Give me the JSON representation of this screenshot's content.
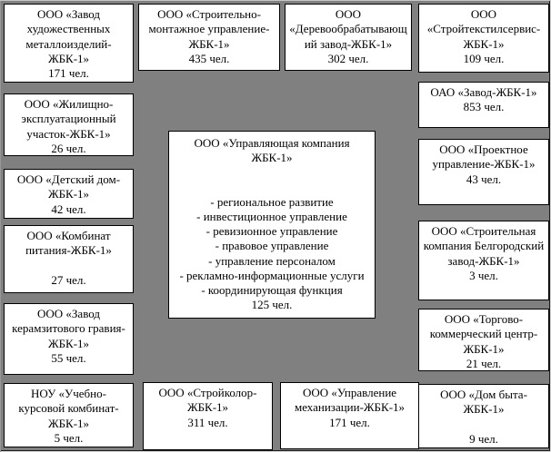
{
  "diagram": {
    "background_color": "#808080",
    "box_background_color": "#ffffff",
    "box_border_color": "#000000",
    "center": {
      "title": "ООО «Управляющая компания ЖБК-1»",
      "functions": "- региональное развитие\n- инвестиционное управление\n- ревизионное управление\n- правовое управление\n- управление персоналом\n- рекламно-информационные услуги\n- координирующая функция",
      "headcount": "125 чел."
    },
    "units": [
      {
        "title": "ООО «Завод художественных металлоизделий-ЖБК-1»",
        "headcount": "171 чел."
      },
      {
        "title": "ООО «Строительно-монтажное управление-ЖБК-1»",
        "headcount": "435 чел."
      },
      {
        "title": "ООО «Деревообрабатывающий завод-ЖБК-1»",
        "headcount": "302 чел."
      },
      {
        "title": "ООО «Стройтекстилсервис-ЖБК-1»",
        "headcount": "109 чел."
      },
      {
        "title": "ООО «Жилищно-эксплуатационный участок-ЖБК-1»",
        "headcount": "26 чел."
      },
      {
        "title": "ОАО «Завод-ЖБК-1»",
        "headcount": "853 чел."
      },
      {
        "title": "ООО «Детский дом-ЖБК-1»",
        "headcount": "42 чел."
      },
      {
        "title": "ООО «Проектное управление-ЖБК-1»",
        "headcount": "43 чел."
      },
      {
        "title": "ООО «Комбинат питания-ЖБК-1»",
        "headcount": "27 чел."
      },
      {
        "title": "ООО «Строительная компания Белгородский завод-ЖБК-1»",
        "headcount": "3 чел."
      },
      {
        "title": "ООО «Завод керамзитового гравия-ЖБК-1»",
        "headcount": "55 чел."
      },
      {
        "title": "ООО «Торгово-коммерческий центр-ЖБК-1»",
        "headcount": "21 чел."
      },
      {
        "title": "НОУ «Учебно-курсовой комбинат-ЖБК-1»",
        "headcount": "5 чел."
      },
      {
        "title": "ООО «Стройколор-ЖБК-1»",
        "headcount": "311 чел."
      },
      {
        "title": "ООО «Управление механизации-ЖБК-1»",
        "headcount": "171 чел."
      },
      {
        "title": "ООО «Дом быта-ЖБК-1»",
        "headcount": "9 чел."
      }
    ]
  }
}
